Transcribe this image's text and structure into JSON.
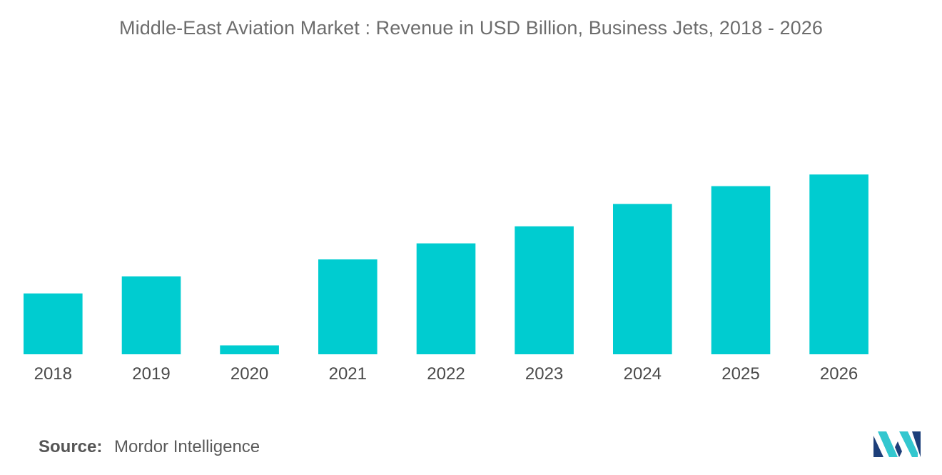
{
  "chart_data": {
    "type": "bar",
    "title": "Middle-East Aviation Market : Revenue in USD Billion, Business Jets, 2018 - 2026",
    "categories": [
      "2018",
      "2019",
      "2020",
      "2021",
      "2022",
      "2023",
      "2024",
      "2025",
      "2026"
    ],
    "values": [
      3.4,
      4.35,
      0.5,
      5.3,
      6.2,
      7.15,
      8.4,
      9.4,
      10.05
    ],
    "xlabel": "",
    "ylabel": "",
    "ylim": [
      0,
      10.5
    ],
    "grid": false,
    "bar_color": "#00ccd0"
  },
  "source": {
    "label": "Source:",
    "value": "Mordor Intelligence"
  },
  "logo": {
    "icon": "mordor-intelligence-logo-icon",
    "colors": [
      "#1d3f7a",
      "#33c7cf"
    ]
  }
}
